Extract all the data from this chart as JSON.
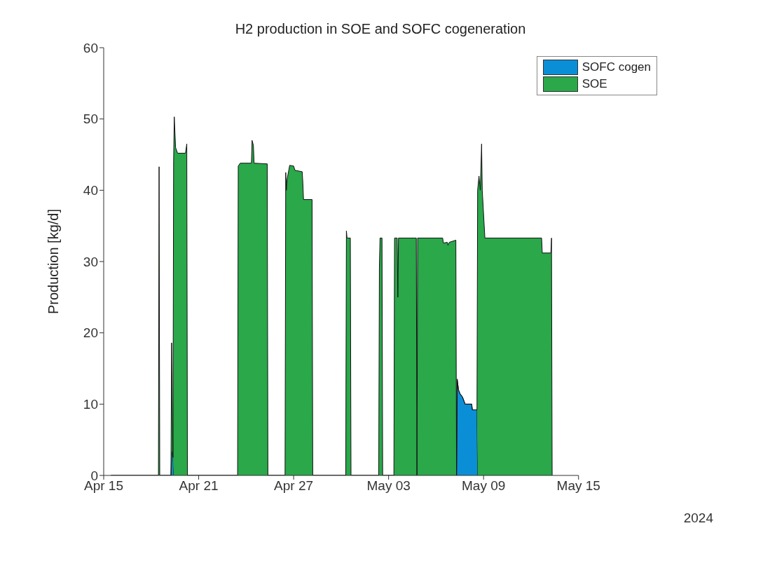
{
  "chart_data": {
    "type": "area",
    "stacked": true,
    "title": "H2 production in SOE and SOFC cogeneration",
    "ylabel": "Production [kg/d]",
    "annotations": [
      "2024"
    ],
    "x": [
      "2024-04-15T11:00",
      "2024-04-18T11:00",
      "2024-04-18T12:00",
      "2024-04-18T13:00",
      "2024-04-19T06:00",
      "2024-04-19T07:00",
      "2024-04-19T09:00",
      "2024-04-19T10:00",
      "2024-04-19T11:00",
      "2024-04-19T13:00",
      "2024-04-19T16:00",
      "2024-04-20T04:00",
      "2024-04-20T06:00",
      "2024-04-20T07:00",
      "2024-04-23T11:00",
      "2024-04-23T12:00",
      "2024-04-23T15:00",
      "2024-04-24T08:00",
      "2024-04-24T09:00",
      "2024-04-24T11:00",
      "2024-04-24T12:00",
      "2024-04-25T08:00",
      "2024-04-25T09:00",
      "2024-04-26T11:00",
      "2024-04-26T12:00",
      "2024-04-26T13:00",
      "2024-04-26T14:00",
      "2024-04-26T18:00",
      "2024-04-27T00:00",
      "2024-04-27T02:00",
      "2024-04-27T13:00",
      "2024-04-27T14:00",
      "2024-04-27T15:00",
      "2024-04-28T04:00",
      "2024-04-28T05:00",
      "2024-04-30T07:00",
      "2024-04-30T08:00",
      "2024-04-30T09:00",
      "2024-04-30T14:00",
      "2024-04-30T15:00",
      "2024-05-02T09:00",
      "2024-05-02T10:00",
      "2024-05-02T11:00",
      "2024-05-02T14:00",
      "2024-05-02T15:00",
      "2024-05-03T08:00",
      "2024-05-03T09:00",
      "2024-05-03T13:00",
      "2024-05-03T14:00",
      "2024-05-03T15:00",
      "2024-05-04T18:00",
      "2024-05-04T19:00",
      "2024-05-04T20:00",
      "2024-05-06T10:00",
      "2024-05-06T11:00",
      "2024-05-06T17:00",
      "2024-05-06T18:00",
      "2024-05-06T20:00",
      "2024-05-07T06:00",
      "2024-05-07T07:00",
      "2024-05-07T08:00",
      "2024-05-07T10:00",
      "2024-05-07T12:00",
      "2024-05-07T16:00",
      "2024-05-07T20:00",
      "2024-05-08T06:00",
      "2024-05-08T07:00",
      "2024-05-08T14:00",
      "2024-05-08T15:00",
      "2024-05-08T17:00",
      "2024-05-08T19:00",
      "2024-05-08T21:00",
      "2024-05-08T22:00",
      "2024-05-09T02:00",
      "2024-05-12T16:00",
      "2024-05-12T17:00",
      "2024-05-13T06:00",
      "2024-05-13T07:00",
      "2024-05-13T08:00"
    ],
    "series": [
      {
        "name": "SOFC cogen",
        "color": "#0a8fd6",
        "values": [
          0,
          0,
          0,
          0,
          0,
          3.5,
          2.5,
          0,
          0,
          0,
          0,
          0,
          0,
          0,
          0,
          0,
          0,
          0,
          0,
          0,
          0,
          0,
          0,
          0,
          0,
          0,
          0,
          0,
          0,
          0,
          0,
          0,
          0,
          0,
          0,
          0,
          0,
          0,
          0,
          0,
          0,
          0,
          0,
          0,
          0,
          0,
          0,
          0,
          0,
          0,
          0,
          0,
          0,
          0,
          0,
          0,
          0,
          0,
          0,
          0,
          13.5,
          12,
          11.5,
          11,
          10,
          10,
          9.2,
          9.2,
          0,
          0,
          0,
          0,
          0,
          0,
          0,
          0,
          0,
          0,
          0
        ]
      },
      {
        "name": "SOE",
        "color": "#2aa84a",
        "values": [
          0,
          0,
          43.3,
          0,
          0,
          15.1,
          0,
          44,
          50.3,
          46,
          45.2,
          45.2,
          46.5,
          0,
          0,
          43.4,
          43.8,
          43.8,
          47,
          46.3,
          43.8,
          43.7,
          0,
          0,
          42.5,
          40,
          41.5,
          43.5,
          43.4,
          42.8,
          42.6,
          41,
          38.7,
          38.7,
          0,
          0,
          34.3,
          33.3,
          33.3,
          0,
          0,
          29.1,
          33.3,
          33.3,
          0,
          0,
          33.3,
          33.3,
          25,
          33.3,
          33.3,
          0,
          33.3,
          33.3,
          32.6,
          32.7,
          32.3,
          32.7,
          33,
          0,
          0,
          0,
          0,
          0,
          0,
          0,
          0,
          0,
          40,
          42,
          40,
          46.5,
          40,
          33.3,
          33.3,
          31.2,
          31.2,
          33.3,
          0
        ]
      }
    ],
    "xlim": [
      "2024-04-15",
      "2024-05-15"
    ],
    "xticks": [
      {
        "value": "2024-04-15",
        "label": "Apr 15"
      },
      {
        "value": "2024-04-21",
        "label": "Apr 21"
      },
      {
        "value": "2024-04-27",
        "label": "Apr 27"
      },
      {
        "value": "2024-05-03",
        "label": "May 03"
      },
      {
        "value": "2024-05-09",
        "label": "May 09"
      },
      {
        "value": "2024-05-15",
        "label": "May 15"
      }
    ],
    "ylim": [
      0,
      60
    ],
    "yticks": [
      0,
      10,
      20,
      30,
      40,
      50,
      60
    ],
    "grid": false,
    "legend": "top right"
  }
}
